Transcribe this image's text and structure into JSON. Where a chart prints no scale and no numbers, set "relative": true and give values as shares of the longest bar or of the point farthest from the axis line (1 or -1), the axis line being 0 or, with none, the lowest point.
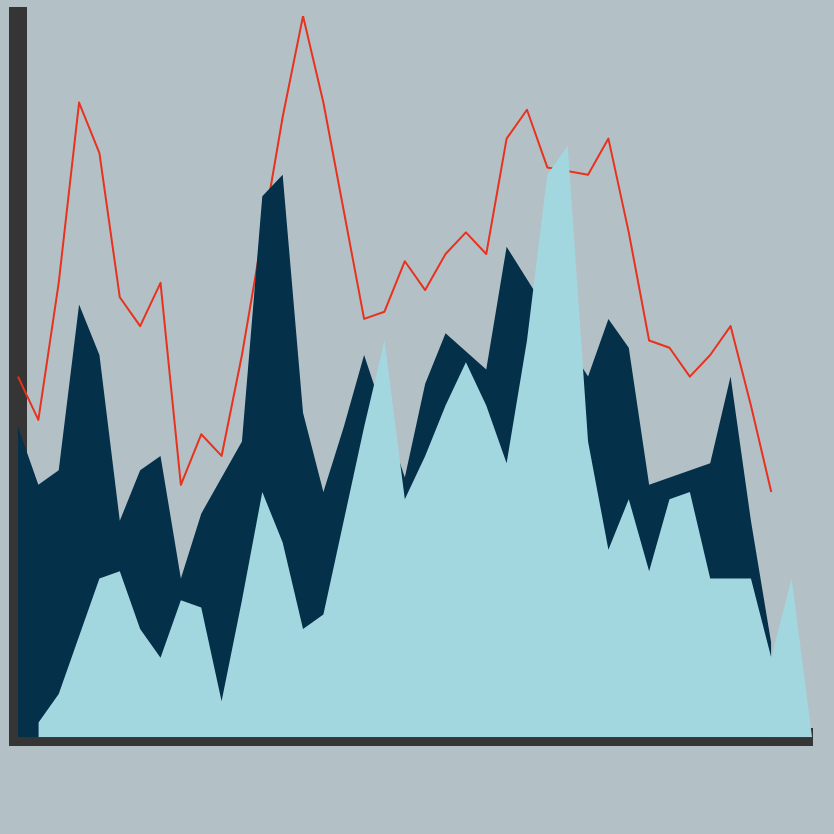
{
  "chart_data": {
    "type": "area",
    "relative": true,
    "grid": false,
    "legend": false,
    "categories": [
      null,
      null,
      null,
      null,
      null,
      null,
      null,
      null,
      null,
      null,
      null,
      null,
      null,
      null,
      null,
      null,
      null,
      null,
      null,
      null,
      null,
      null,
      null,
      null,
      null,
      null,
      null,
      null,
      null,
      null,
      null,
      null,
      null,
      null,
      null,
      null,
      null,
      null,
      null,
      null
    ],
    "series": [
      {
        "type": "line",
        "color": "#e8321e",
        "values": [
          0.5,
          0.44,
          0.63,
          0.88,
          0.81,
          0.61,
          0.57,
          0.63,
          0.35,
          0.42,
          0.39,
          0.53,
          null,
          0.86,
          1,
          0.88,
          0.73,
          0.58,
          0.59,
          0.66,
          0.62,
          0.67,
          0.7,
          0.67,
          0.83,
          0.87,
          0.79,
          null,
          0.78,
          0.83,
          0.7,
          0.55,
          0.54,
          0.5,
          0.53,
          0.57,
          0.46,
          0.34,
          null,
          null
        ]
      },
      {
        "color": "#04304a",
        "values": [
          0.43,
          0.35,
          0.37,
          0.6,
          0.53,
          0.3,
          0.37,
          0.39,
          0.22,
          0.31,
          null,
          0.41,
          0.75,
          0.78,
          0.45,
          0.34,
          0.43,
          0.53,
          null,
          0.36,
          0.49,
          0.56,
          null,
          0.51,
          0.68,
          null,
          null,
          null,
          0.5,
          0.58,
          0.54,
          0.35,
          null,
          null,
          0.38,
          0.5,
          0.3,
          0.13,
          null,
          null
        ]
      },
      {
        "color": "#a3d7df",
        "values": [
          null,
          0.02,
          0.06,
          0.14,
          0.22,
          0.23,
          0.15,
          0.11,
          0.19,
          0.18,
          0.05,
          0.19,
          0.34,
          0.27,
          0.15,
          0.17,
          0.3,
          0.43,
          0.55,
          0.33,
          0.39,
          0.46,
          0.52,
          0.46,
          0.38,
          0.55,
          0.78,
          0.82,
          0.41,
          0.26,
          0.33,
          0.23,
          0.33,
          0.34,
          0.22,
          0.22,
          0.22,
          0.11,
          0.22,
          0
        ]
      }
    ]
  }
}
